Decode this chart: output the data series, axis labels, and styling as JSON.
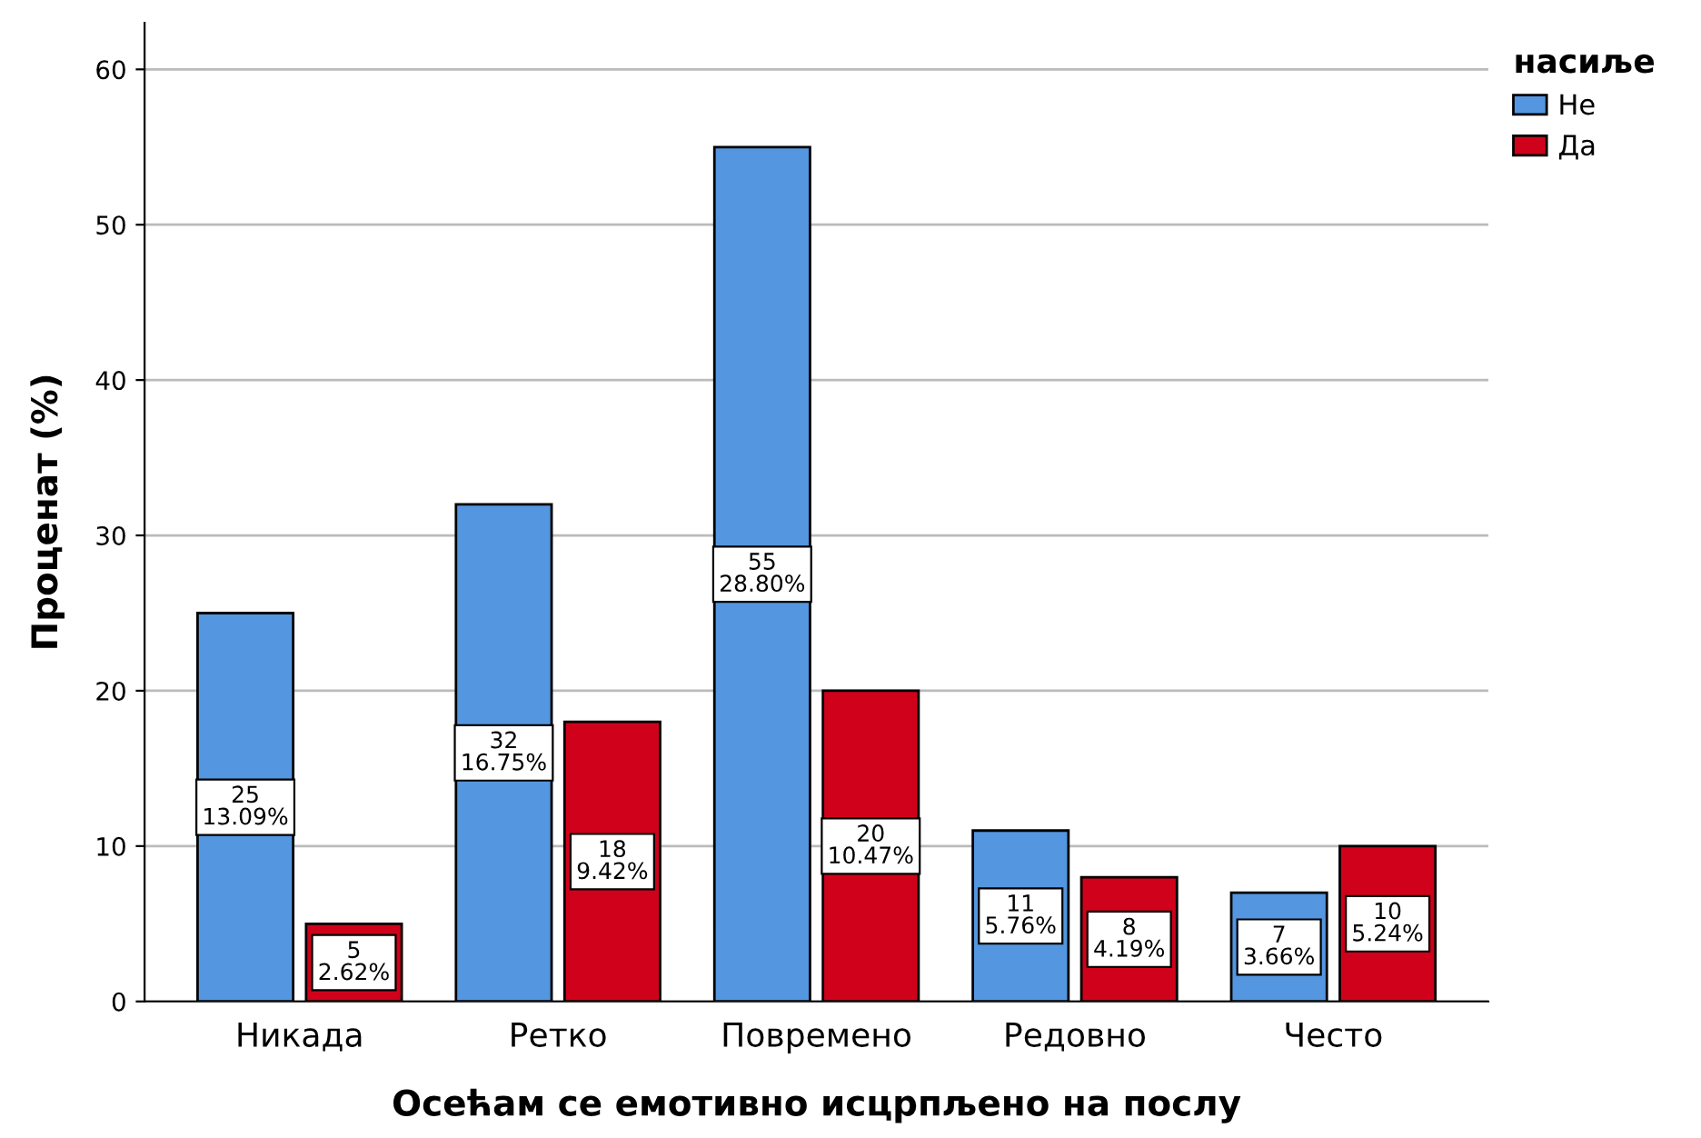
{
  "chart_data": {
    "type": "bar",
    "xlabel": "Осећам се емотивно исцрпљено на послу",
    "ylabel": "Проценат (%)",
    "legend_title": "насиље",
    "categories": [
      "Никада",
      "Ретко",
      "Повремено",
      "Редовно",
      "Често"
    ],
    "series": [
      {
        "name": "Не",
        "color": "#5596e0",
        "values": [
          25,
          32,
          55,
          11,
          7
        ],
        "value_labels": [
          "25\n13.09%",
          "32\n16.75%",
          "55\n28.80%",
          "11\n5.76%",
          "7\n3.66%"
        ]
      },
      {
        "name": "Да",
        "color": "#d0021b",
        "values": [
          5,
          18,
          20,
          8,
          10
        ],
        "value_labels": [
          "5\n2.62%",
          "18\n9.42%",
          "20\n10.47%",
          "8\n4.19%",
          "10\n5.24%"
        ]
      }
    ],
    "ylim": [
      0,
      63
    ],
    "yticks": [
      0,
      10,
      20,
      30,
      40,
      50,
      60
    ],
    "grid": "y",
    "legend": "top right"
  }
}
